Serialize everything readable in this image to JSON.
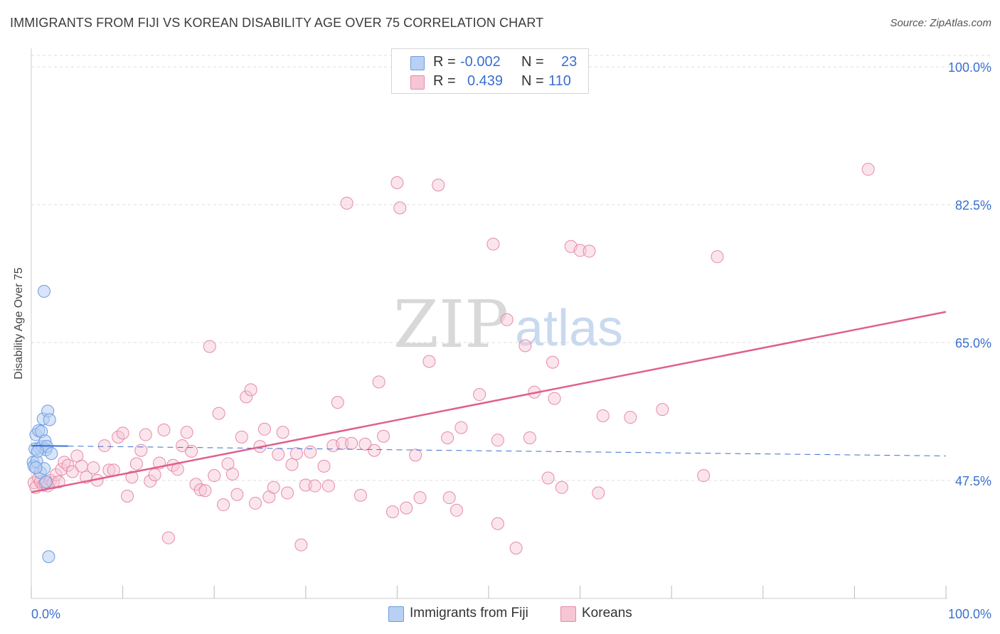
{
  "title": "IMMIGRANTS FROM FIJI VS KOREAN DISABILITY AGE OVER 75 CORRELATION CHART",
  "source": "Source: ZipAtlas.com",
  "watermark": {
    "zip": "ZIP",
    "atlas": "atlas"
  },
  "legend": {
    "r_label": "R =",
    "n_label": "N =",
    "series": [
      {
        "name": "Immigrants from Fiji",
        "r": "-0.002",
        "n": "23",
        "fill": "#b8d0f3",
        "stroke": "#6c9be0"
      },
      {
        "name": "Koreans",
        "r": "0.439",
        "n": "110",
        "fill": "#f7c6d5",
        "stroke": "#e58aa8"
      }
    ]
  },
  "colors": {
    "blue": "#3a6fd1",
    "pink": "#e0608e",
    "grid": "#dddddd"
  },
  "chart_data": {
    "type": "scatter",
    "title": "IMMIGRANTS FROM FIJI VS KOREAN DISABILITY AGE OVER 75 CORRELATION CHART",
    "xlabel": "",
    "ylabel": "Disability Age Over 75",
    "xlim": [
      0,
      100
    ],
    "ylim": [
      32.5,
      102
    ],
    "x_tick_labels": [
      "0.0%",
      "100.0%"
    ],
    "y_ticks": [
      47.5,
      65.0,
      82.5,
      100.0
    ],
    "y_tick_labels": [
      "47.5%",
      "65.0%",
      "82.5%",
      "100.0%"
    ],
    "grid": true,
    "series": [
      {
        "name": "Immigrants from Fiji",
        "color": "#6c9be0",
        "points": [
          [
            0.2,
            49.8
          ],
          [
            0.3,
            49.3
          ],
          [
            0.4,
            51.5
          ],
          [
            0.5,
            53.3
          ],
          [
            0.6,
            49.9
          ],
          [
            0.8,
            53.8
          ],
          [
            0.9,
            51.6
          ],
          [
            1.0,
            48.5
          ],
          [
            1.1,
            53.7
          ],
          [
            1.2,
            51.8
          ],
          [
            1.3,
            55.3
          ],
          [
            1.4,
            49.0
          ],
          [
            1.5,
            52.5
          ],
          [
            1.6,
            51.4
          ],
          [
            1.7,
            51.8
          ],
          [
            1.8,
            56.3
          ],
          [
            2.0,
            55.2
          ],
          [
            2.2,
            50.9
          ],
          [
            0.7,
            51.2
          ],
          [
            1.4,
            71.5
          ],
          [
            1.9,
            37.8
          ],
          [
            0.5,
            49.1
          ],
          [
            1.6,
            47.3
          ]
        ],
        "trend": {
          "x": [
            0,
            100
          ],
          "y": [
            51.9,
            50.6
          ]
        }
      },
      {
        "name": "Koreans",
        "color": "#e58aa8",
        "points": [
          [
            0.3,
            47.2
          ],
          [
            0.5,
            46.6
          ],
          [
            0.8,
            47.8
          ],
          [
            1.0,
            47.3
          ],
          [
            1.3,
            46.9
          ],
          [
            1.5,
            47.1
          ],
          [
            1.8,
            46.8
          ],
          [
            2.1,
            47.5
          ],
          [
            2.4,
            47.2
          ],
          [
            2.7,
            48.2
          ],
          [
            3.0,
            47.3
          ],
          [
            3.3,
            48.9
          ],
          [
            3.6,
            49.8
          ],
          [
            4.0,
            49.4
          ],
          [
            4.5,
            48.6
          ],
          [
            5.0,
            50.6
          ],
          [
            5.5,
            49.3
          ],
          [
            6.0,
            47.9
          ],
          [
            6.8,
            49.1
          ],
          [
            7.2,
            47.5
          ],
          [
            8.0,
            51.9
          ],
          [
            8.5,
            48.8
          ],
          [
            9.0,
            48.8
          ],
          [
            9.5,
            53.0
          ],
          [
            10.0,
            53.5
          ],
          [
            10.5,
            45.5
          ],
          [
            11.0,
            47.9
          ],
          [
            11.5,
            49.6
          ],
          [
            12.0,
            51.3
          ],
          [
            12.5,
            53.3
          ],
          [
            13.0,
            47.4
          ],
          [
            13.5,
            48.2
          ],
          [
            14.0,
            49.7
          ],
          [
            14.5,
            53.9
          ],
          [
            15.0,
            40.2
          ],
          [
            15.5,
            49.4
          ],
          [
            16.0,
            48.9
          ],
          [
            16.5,
            51.9
          ],
          [
            17.0,
            53.6
          ],
          [
            17.5,
            51.2
          ],
          [
            18.0,
            47.0
          ],
          [
            18.5,
            46.3
          ],
          [
            19.0,
            46.2
          ],
          [
            19.5,
            64.5
          ],
          [
            20.0,
            48.1
          ],
          [
            20.5,
            56.0
          ],
          [
            21.0,
            44.4
          ],
          [
            21.5,
            49.6
          ],
          [
            22.0,
            48.3
          ],
          [
            22.5,
            45.7
          ],
          [
            23.0,
            53.0
          ],
          [
            23.5,
            58.1
          ],
          [
            24.0,
            59.0
          ],
          [
            24.5,
            44.6
          ],
          [
            25.0,
            51.8
          ],
          [
            25.5,
            54.0
          ],
          [
            26.0,
            45.4
          ],
          [
            26.5,
            46.6
          ],
          [
            27.0,
            50.8
          ],
          [
            27.5,
            53.6
          ],
          [
            28.0,
            45.9
          ],
          [
            28.5,
            49.5
          ],
          [
            29.0,
            50.9
          ],
          [
            29.5,
            39.3
          ],
          [
            30.0,
            46.9
          ],
          [
            30.5,
            51.1
          ],
          [
            31.0,
            46.8
          ],
          [
            32.0,
            49.3
          ],
          [
            32.5,
            46.8
          ],
          [
            33.0,
            51.9
          ],
          [
            33.5,
            57.4
          ],
          [
            34.0,
            52.2
          ],
          [
            34.5,
            82.7
          ],
          [
            35.0,
            52.2
          ],
          [
            36.0,
            45.6
          ],
          [
            36.5,
            52.1
          ],
          [
            37.5,
            51.3
          ],
          [
            38.0,
            60.0
          ],
          [
            38.5,
            53.1
          ],
          [
            39.5,
            43.5
          ],
          [
            40.0,
            85.3
          ],
          [
            40.3,
            82.1
          ],
          [
            41.0,
            44.0
          ],
          [
            42.0,
            50.7
          ],
          [
            42.5,
            45.3
          ],
          [
            43.5,
            62.6
          ],
          [
            44.5,
            85.0
          ],
          [
            45.5,
            52.9
          ],
          [
            45.7,
            45.3
          ],
          [
            46.5,
            43.7
          ],
          [
            47.0,
            54.2
          ],
          [
            49.0,
            58.4
          ],
          [
            50.5,
            77.5
          ],
          [
            51.0,
            52.6
          ],
          [
            51.0,
            42.0
          ],
          [
            52.0,
            67.9
          ],
          [
            53.0,
            38.9
          ],
          [
            54.0,
            64.6
          ],
          [
            54.5,
            52.9
          ],
          [
            55.0,
            58.7
          ],
          [
            56.5,
            47.8
          ],
          [
            57.0,
            62.5
          ],
          [
            57.2,
            57.9
          ],
          [
            58.0,
            46.6
          ],
          [
            59.0,
            77.2
          ],
          [
            60.0,
            76.7
          ],
          [
            61.0,
            76.6
          ],
          [
            62.0,
            45.9
          ],
          [
            62.5,
            55.7
          ],
          [
            65.5,
            55.5
          ],
          [
            69.0,
            56.5
          ],
          [
            73.5,
            48.1
          ],
          [
            75.0,
            75.9
          ],
          [
            91.5,
            87.0
          ]
        ],
        "trend": {
          "x": [
            0,
            100
          ],
          "y": [
            46.0,
            68.9
          ]
        }
      }
    ]
  }
}
